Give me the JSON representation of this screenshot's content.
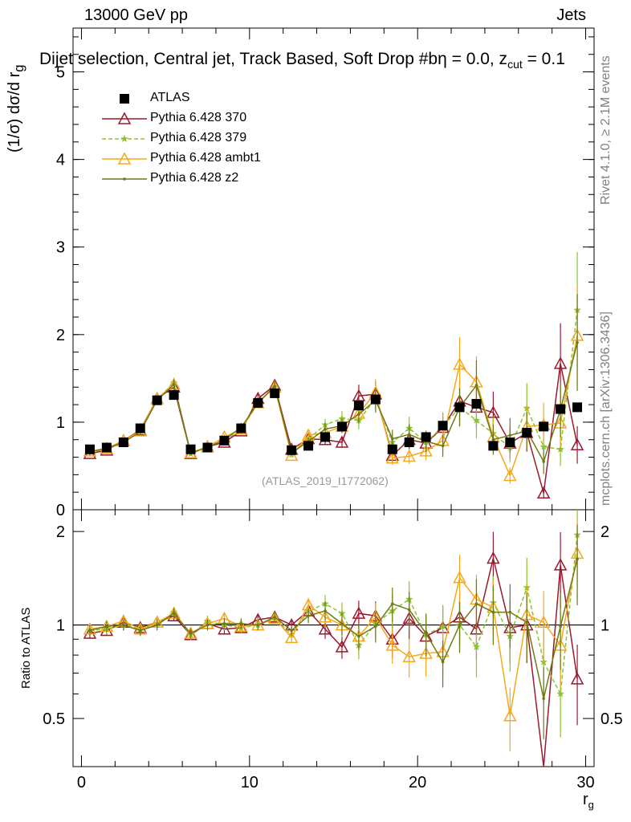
{
  "header": {
    "left": "13000 GeV pp",
    "right": "Jets"
  },
  "title": {
    "main": "Dijet selection, Central jet, Track Based, Soft Drop #b",
    "tail": "η = 0.0, z",
    "sub": "cut",
    "end": " = 0.1"
  },
  "side": {
    "rivet": "Rivet 4.1.0, ≥ 2.1M events",
    "mcplots": "mcplots.cern.ch [arXiv:1306.3436]"
  },
  "watermark": "(ATLAS_2019_I1772062)",
  "axes": {
    "ylabel_top": "(1/σ) dσ/d r",
    "ylabel_top_sub": "g",
    "ylabel_bottom": "Ratio to ATLAS",
    "xlabel": "r",
    "xlabel_sub": "g"
  },
  "legend": [
    {
      "label": "ATLAS",
      "color": "#000000",
      "marker": "square"
    },
    {
      "label": "Pythia 6.428 370",
      "color": "#9a1a2e",
      "marker": "triangle"
    },
    {
      "label": "Pythia 6.428 379",
      "color": "#8cc42d",
      "marker": "star"
    },
    {
      "label": "Pythia 6.428 ambt1",
      "color": "#f5a81c",
      "marker": "triangle"
    },
    {
      "label": "Pythia 6.428 z2",
      "color": "#6e7a14",
      "marker": "dot"
    }
  ],
  "chart_data": [
    {
      "type": "line",
      "panel": "main",
      "xlim": [
        -0.5,
        30.5
      ],
      "ylim": [
        0,
        5.5
      ],
      "xticks": [
        0,
        10,
        20,
        30
      ],
      "yticks": [
        0,
        1,
        2,
        3,
        4,
        5
      ],
      "x": [
        0.5,
        1.5,
        2.5,
        3.5,
        4.5,
        5.5,
        6.5,
        7.5,
        8.5,
        9.5,
        10.5,
        11.5,
        12.5,
        13.5,
        14.5,
        15.5,
        16.5,
        17.5,
        18.5,
        19.5,
        20.5,
        21.5,
        22.5,
        23.5,
        24.5,
        25.5,
        26.5,
        27.5,
        28.5,
        29.5
      ],
      "series": [
        {
          "name": "ATLAS",
          "values": [
            0.69,
            0.71,
            0.77,
            0.93,
            1.25,
            1.31,
            0.69,
            0.71,
            0.79,
            0.93,
            1.22,
            1.33,
            0.68,
            0.73,
            0.83,
            0.95,
            1.19,
            1.26,
            0.69,
            0.77,
            0.83,
            0.96,
            1.17,
            1.21,
            0.73,
            0.77,
            0.88,
            0.95,
            1.15,
            1.17
          ]
        },
        {
          "name": "Pythia 6.428 370",
          "values": [
            0.64,
            0.68,
            0.79,
            0.91,
            1.27,
            1.4,
            0.64,
            0.72,
            0.77,
            0.9,
            1.27,
            1.42,
            0.69,
            0.81,
            0.8,
            0.77,
            1.3,
            1.32,
            0.62,
            0.8,
            0.76,
            0.94,
            1.24,
            1.17,
            1.11,
            0.76,
            0.88,
            0.19,
            1.67,
            0.74
          ]
        },
        {
          "name": "Pythia 6.428 379",
          "values": [
            0.66,
            0.69,
            0.77,
            0.9,
            1.26,
            1.45,
            0.64,
            0.73,
            0.79,
            0.91,
            1.22,
            1.4,
            0.63,
            0.81,
            0.97,
            1.04,
            1.02,
            1.27,
            0.77,
            0.93,
            0.77,
            0.95,
            1.17,
            1.02,
            0.87,
            0.71,
            1.16,
            0.72,
            0.69,
            2.28
          ]
        },
        {
          "name": "Pythia 6.428 ambt1",
          "values": [
            0.67,
            0.7,
            0.79,
            0.9,
            1.27,
            1.43,
            0.65,
            0.72,
            0.83,
            0.92,
            1.22,
            1.4,
            0.62,
            0.85,
            0.88,
            0.95,
            1.1,
            1.34,
            0.59,
            0.61,
            0.67,
            0.79,
            1.66,
            1.46,
            0.83,
            0.39,
            0.95,
            0.97,
            0.99,
            1.99
          ]
        },
        {
          "name": "Pythia 6.428 z2",
          "values": [
            0.66,
            0.7,
            0.77,
            0.89,
            1.25,
            1.43,
            0.65,
            0.71,
            0.8,
            0.94,
            1.22,
            1.41,
            0.65,
            0.78,
            0.92,
            0.96,
            1.09,
            1.25,
            0.81,
            0.86,
            0.78,
            0.73,
            1.17,
            1.42,
            0.8,
            0.85,
            0.9,
            0.55,
            1.14,
            1.91
          ]
        }
      ]
    },
    {
      "type": "line",
      "panel": "ratio",
      "xlim": [
        -0.5,
        30.5
      ],
      "ylim": [
        0.35,
        2.35
      ],
      "xticks": [
        0,
        10,
        20,
        30
      ],
      "yticks": [
        0.5,
        1,
        2
      ],
      "ylabel": "Ratio to ATLAS",
      "x": [
        0.5,
        1.5,
        2.5,
        3.5,
        4.5,
        5.5,
        6.5,
        7.5,
        8.5,
        9.5,
        10.5,
        11.5,
        12.5,
        13.5,
        14.5,
        15.5,
        16.5,
        17.5,
        18.5,
        19.5,
        20.5,
        21.5,
        22.5,
        23.5,
        24.5,
        25.5,
        26.5,
        27.5,
        28.5,
        29.5
      ],
      "series": [
        {
          "name": "Pythia 6.428 370",
          "values": [
            0.94,
            0.96,
            1.02,
            0.98,
            1.02,
            1.07,
            0.93,
            1.01,
            0.97,
            0.98,
            1.04,
            1.06,
            1.0,
            1.11,
            0.97,
            0.85,
            1.09,
            1.07,
            0.9,
            1.05,
            0.92,
            0.98,
            1.06,
            0.97,
            1.64,
            0.98,
            1.0,
            0.2,
            1.56,
            0.67
          ]
        },
        {
          "name": "Pythia 6.428 379",
          "values": [
            0.96,
            0.97,
            1.0,
            0.97,
            1.01,
            1.1,
            0.93,
            1.03,
            1.0,
            0.98,
            1.0,
            1.05,
            0.93,
            1.11,
            1.17,
            1.09,
            0.86,
            1.01,
            1.11,
            1.21,
            0.93,
            0.99,
            1.0,
            0.85,
            1.18,
            0.92,
            1.32,
            0.76,
            0.6,
            1.95
          ]
        },
        {
          "name": "Pythia 6.428 ambt1",
          "values": [
            0.97,
            0.99,
            1.03,
            0.97,
            1.02,
            1.09,
            0.94,
            1.01,
            1.05,
            0.99,
            1.0,
            1.05,
            0.91,
            1.16,
            1.06,
            1.0,
            0.92,
            1.06,
            0.86,
            0.79,
            0.81,
            0.82,
            1.42,
            1.21,
            1.14,
            0.51,
            1.08,
            1.02,
            0.86,
            1.7
          ]
        },
        {
          "name": "Pythia 6.428 z2",
          "values": [
            0.96,
            0.99,
            1.0,
            0.96,
            1.0,
            1.09,
            0.94,
            1.0,
            1.01,
            1.01,
            1.0,
            1.06,
            0.96,
            1.07,
            1.11,
            1.01,
            0.92,
            0.99,
            1.17,
            1.12,
            0.94,
            0.76,
            1.0,
            1.17,
            1.1,
            1.1,
            1.02,
            0.58,
            0.99,
            1.63
          ]
        }
      ]
    }
  ]
}
